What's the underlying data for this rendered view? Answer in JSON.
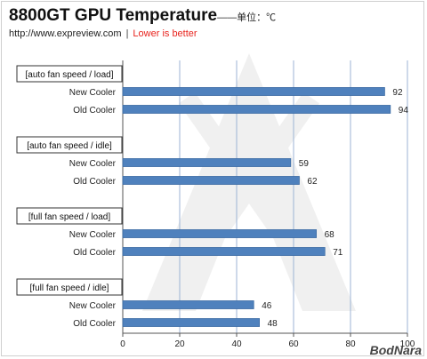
{
  "header": {
    "title": "8800GT GPU Temperature",
    "title_unit": "——单位：℃",
    "site": "http://www.expreview.com",
    "separator": "|",
    "note": "Lower is better"
  },
  "brand": "BodNara",
  "colors": {
    "bar": "#4f81bd",
    "bar_stroke": "#3a6aa3",
    "grid": "#9db3d4",
    "note": "#e8231d"
  },
  "chart_data": {
    "type": "bar",
    "orientation": "horizontal",
    "xlim": [
      0,
      100
    ],
    "xticks": [
      0,
      20,
      40,
      60,
      80,
      100
    ],
    "grid": true,
    "groups": [
      {
        "label": "[auto fan speed / load]",
        "bars": [
          {
            "label": "New Cooler",
            "value": 92
          },
          {
            "label": "Old Cooler",
            "value": 94
          }
        ]
      },
      {
        "label": "[auto fan speed / idle]",
        "bars": [
          {
            "label": "New Cooler",
            "value": 59
          },
          {
            "label": "Old Cooler",
            "value": 62
          }
        ]
      },
      {
        "label": "[full fan speed / load]",
        "bars": [
          {
            "label": "New Cooler",
            "value": 68
          },
          {
            "label": "Old Cooler",
            "value": 71
          }
        ]
      },
      {
        "label": "[full fan speed / idle]",
        "bars": [
          {
            "label": "New Cooler",
            "value": 46
          },
          {
            "label": "Old Cooler",
            "value": 48
          }
        ]
      }
    ]
  }
}
